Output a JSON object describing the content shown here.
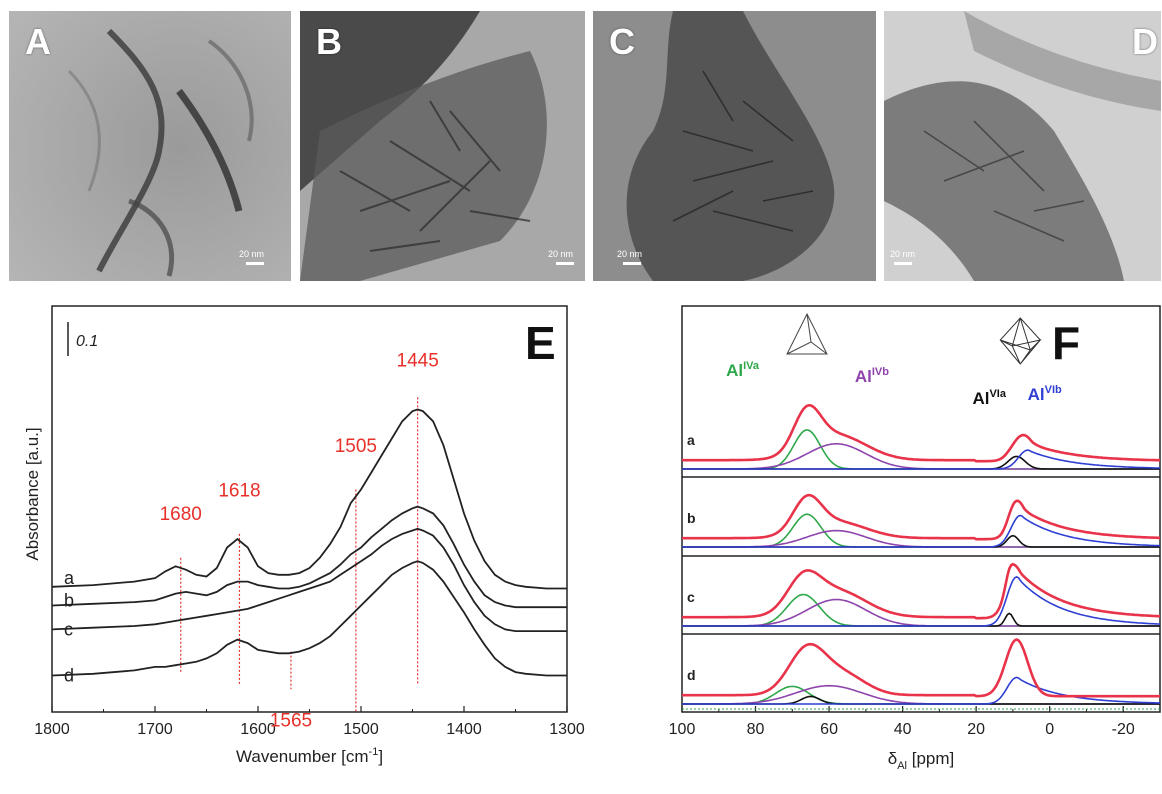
{
  "tem_panels": [
    {
      "letter": "A",
      "scale": "20 nm"
    },
    {
      "letter": "B",
      "scale": "20 nm"
    },
    {
      "letter": "C",
      "scale": "20 nm"
    },
    {
      "letter": "D",
      "scale": "20 nm"
    }
  ],
  "chart_data": [
    {
      "panel": "E",
      "type": "line",
      "xlabel": "Wavenumber [cm",
      "xlabel_sup": "-1",
      "xlabel_end": "]",
      "ylabel": "Absorbance [a.u.]",
      "scale_label": "0.1",
      "xlim": [
        1800,
        1300
      ],
      "x_ticks": [
        "1800",
        "1700",
        "1600",
        "1500",
        "1400",
        "1300"
      ],
      "x_tick_values": [
        1800,
        1700,
        1600,
        1500,
        1400,
        1300
      ],
      "ylim": [
        0,
        1
      ],
      "grid": false,
      "series": [
        {
          "name": "a",
          "x": [
            1800,
            1760,
            1720,
            1700,
            1690,
            1680,
            1670,
            1660,
            1650,
            1640,
            1630,
            1620,
            1610,
            1600,
            1590,
            1580,
            1570,
            1560,
            1550,
            1540,
            1530,
            1520,
            1510,
            1500,
            1490,
            1480,
            1470,
            1460,
            1450,
            1445,
            1440,
            1430,
            1420,
            1410,
            1400,
            1390,
            1380,
            1370,
            1360,
            1350,
            1340,
            1320,
            1300
          ],
          "y": [
            0.485,
            0.49,
            0.5,
            0.51,
            0.53,
            0.545,
            0.535,
            0.52,
            0.515,
            0.54,
            0.6,
            0.625,
            0.6,
            0.545,
            0.525,
            0.52,
            0.52,
            0.525,
            0.54,
            0.57,
            0.61,
            0.66,
            0.73,
            0.77,
            0.82,
            0.87,
            0.92,
            0.97,
            1.0,
            1.005,
            1.0,
            0.97,
            0.9,
            0.8,
            0.7,
            0.62,
            0.56,
            0.52,
            0.5,
            0.49,
            0.485,
            0.48,
            0.48
          ]
        },
        {
          "name": "b",
          "x": [
            1800,
            1760,
            1720,
            1700,
            1690,
            1680,
            1670,
            1660,
            1650,
            1640,
            1630,
            1620,
            1610,
            1600,
            1590,
            1580,
            1570,
            1560,
            1550,
            1540,
            1530,
            1520,
            1510,
            1500,
            1490,
            1480,
            1470,
            1460,
            1450,
            1445,
            1440,
            1430,
            1420,
            1410,
            1400,
            1390,
            1380,
            1370,
            1360,
            1350,
            1340,
            1320,
            1300
          ],
          "y": [
            0.43,
            0.435,
            0.44,
            0.445,
            0.455,
            0.465,
            0.47,
            0.465,
            0.46,
            0.47,
            0.49,
            0.5,
            0.5,
            0.49,
            0.485,
            0.48,
            0.48,
            0.485,
            0.495,
            0.51,
            0.525,
            0.55,
            0.58,
            0.6,
            0.63,
            0.655,
            0.68,
            0.7,
            0.715,
            0.72,
            0.715,
            0.7,
            0.665,
            0.61,
            0.55,
            0.5,
            0.46,
            0.44,
            0.43,
            0.425,
            0.425,
            0.425,
            0.425
          ]
        },
        {
          "name": "c",
          "x": [
            1800,
            1760,
            1720,
            1700,
            1690,
            1680,
            1670,
            1660,
            1650,
            1640,
            1630,
            1620,
            1610,
            1600,
            1590,
            1580,
            1570,
            1560,
            1550,
            1540,
            1530,
            1520,
            1510,
            1500,
            1490,
            1480,
            1470,
            1460,
            1450,
            1445,
            1440,
            1430,
            1420,
            1410,
            1400,
            1390,
            1380,
            1370,
            1360,
            1350,
            1340,
            1320,
            1300
          ],
          "y": [
            0.36,
            0.365,
            0.37,
            0.375,
            0.38,
            0.385,
            0.39,
            0.395,
            0.4,
            0.405,
            0.41,
            0.415,
            0.42,
            0.43,
            0.44,
            0.45,
            0.46,
            0.47,
            0.48,
            0.49,
            0.5,
            0.52,
            0.54,
            0.56,
            0.58,
            0.605,
            0.625,
            0.64,
            0.65,
            0.655,
            0.65,
            0.635,
            0.6,
            0.55,
            0.49,
            0.44,
            0.4,
            0.375,
            0.36,
            0.355,
            0.355,
            0.355,
            0.355
          ]
        },
        {
          "name": "d",
          "x": [
            1800,
            1760,
            1720,
            1700,
            1690,
            1680,
            1670,
            1660,
            1650,
            1640,
            1630,
            1620,
            1610,
            1600,
            1590,
            1580,
            1570,
            1560,
            1550,
            1540,
            1530,
            1520,
            1510,
            1500,
            1490,
            1480,
            1470,
            1460,
            1450,
            1445,
            1440,
            1430,
            1420,
            1410,
            1400,
            1390,
            1380,
            1370,
            1360,
            1350,
            1340,
            1320,
            1300
          ],
          "y": [
            0.225,
            0.23,
            0.24,
            0.25,
            0.25,
            0.255,
            0.26,
            0.265,
            0.275,
            0.29,
            0.315,
            0.33,
            0.32,
            0.3,
            0.295,
            0.29,
            0.29,
            0.295,
            0.305,
            0.32,
            0.34,
            0.37,
            0.4,
            0.43,
            0.46,
            0.49,
            0.52,
            0.54,
            0.555,
            0.56,
            0.555,
            0.535,
            0.5,
            0.455,
            0.41,
            0.36,
            0.315,
            0.275,
            0.25,
            0.235,
            0.23,
            0.225,
            0.225
          ]
        }
      ],
      "curve_labels": [
        "a",
        "b",
        "c",
        "d"
      ],
      "curve_label_y": [
        0.51,
        0.445,
        0.36,
        0.225
      ],
      "annotations": [
        {
          "text": "1680",
          "x": 1675,
          "label_y": 0.68,
          "line_top": 0.57,
          "line_bottom": 0.23
        },
        {
          "text": "1618",
          "x": 1618,
          "label_y": 0.75,
          "line_top": 0.64,
          "line_bottom": 0.2
        },
        {
          "text": "1505",
          "x": 1505,
          "label_y": 0.88,
          "line_top": 0.77,
          "line_bottom": 0.12
        },
        {
          "text": "1445",
          "x": 1445,
          "label_y": 1.13,
          "line_top": 1.04,
          "line_bottom": 0.2
        },
        {
          "text": "1565",
          "x": 1568,
          "label_y": 0.075,
          "line_top": 0.295,
          "line_bottom": 0.185
        }
      ],
      "annotation_color": "#e8302a"
    },
    {
      "panel": "F",
      "type": "line",
      "xlabel": "δ",
      "xlabel_sub": "Al",
      "xlabel_end": " [ppm]",
      "xlim": [
        100,
        -30
      ],
      "x_ticks": [
        "100",
        "80",
        "60",
        "40",
        "20",
        "0",
        "-20"
      ],
      "x_tick_values": [
        100,
        80,
        60,
        40,
        20,
        0,
        -20
      ],
      "ylim": [
        0,
        1
      ],
      "grid": false,
      "colors": {
        "total": "#e8334a",
        "AlIVa": "#2ea84a",
        "AlIVb": "#8e44ad",
        "AlVIa": "#111111",
        "AlVIb": "#2f3fd4"
      },
      "legend": [
        {
          "base": "Al",
          "sup": "IVa",
          "color": "#2ea84a"
        },
        {
          "base": "Al",
          "sup": "IVb",
          "color": "#8e44ad"
        },
        {
          "base": "Al",
          "sup": "VIa",
          "color": "#111111"
        },
        {
          "base": "Al",
          "sup": "VIb",
          "color": "#2f3fd4"
        }
      ],
      "subplots": [
        {
          "label": "a",
          "AlIVa": {
            "center": 66,
            "height": 0.62,
            "width": 3.6
          },
          "AlIVb": {
            "center": 58,
            "height": 0.4,
            "width": 8
          },
          "AlVIa": {
            "center": 9,
            "height": 0.2,
            "width": 2.3
          },
          "AlVIb": {
            "center": 6,
            "height": 0.3,
            "width": 2.5,
            "tail": 12
          }
        },
        {
          "label": "b",
          "AlIVa": {
            "center": 66,
            "height": 0.52,
            "width": 3.8
          },
          "AlIVb": {
            "center": 58,
            "height": 0.26,
            "width": 8
          },
          "AlVIa": {
            "center": 10,
            "height": 0.18,
            "width": 1.6
          },
          "AlVIb": {
            "center": 8,
            "height": 0.5,
            "width": 2.5,
            "tail": 12
          }
        },
        {
          "label": "c",
          "AlIVa": {
            "center": 67,
            "height": 0.5,
            "width": 4.4
          },
          "AlIVb": {
            "center": 58,
            "height": 0.42,
            "width": 8
          },
          "AlVIa": {
            "center": 11,
            "height": 0.2,
            "width": 1.1
          },
          "AlVIb": {
            "center": 9,
            "height": 0.78,
            "width": 2.6,
            "tail": 12
          }
        },
        {
          "label": "d",
          "AlIVa": {
            "center": 70,
            "height": 0.28,
            "width": 4.5
          },
          "AlIVb": {
            "center": 60,
            "height": 0.29,
            "width": 9
          },
          "AlVIa": {
            "center": 65,
            "height": 0.12,
            "width": 2.5
          },
          "AlVIb": {
            "center": 9,
            "height": 0.42,
            "width": 2.6,
            "tail": 12
          },
          "total_peaks": [
            {
              "center": 66,
              "height": 0.72,
              "width": 5
            },
            {
              "center": 56,
              "height": 0.32,
              "width": 6
            },
            {
              "center": 9,
              "height": 0.9,
              "width": 3
            }
          ]
        }
      ]
    }
  ]
}
